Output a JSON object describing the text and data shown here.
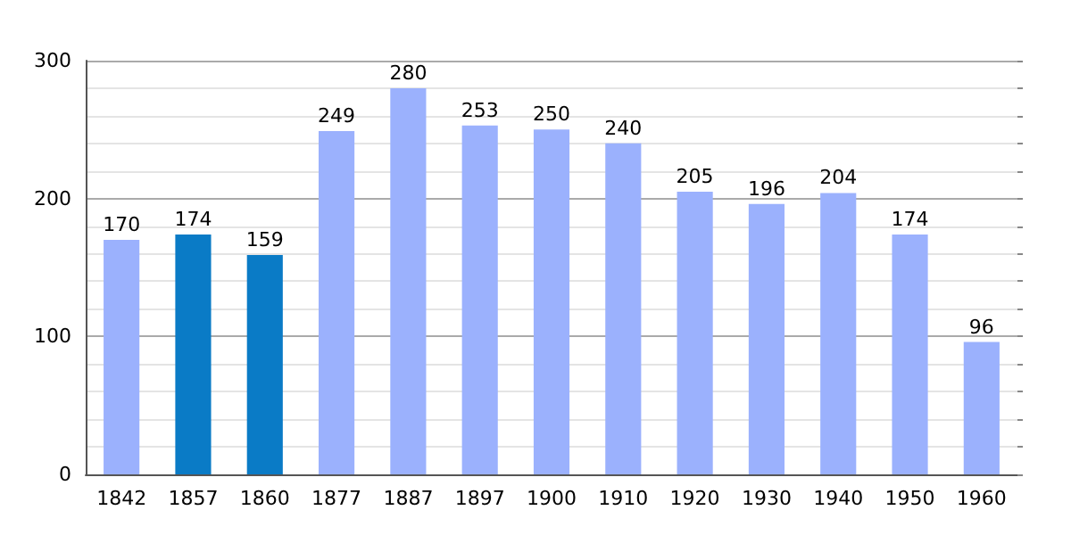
{
  "chart_data": {
    "type": "bar",
    "categories": [
      "1842",
      "1857",
      "1860",
      "1877",
      "1887",
      "1897",
      "1900",
      "1910",
      "1920",
      "1930",
      "1940",
      "1950",
      "1960"
    ],
    "values": [
      170,
      174,
      159,
      249,
      280,
      253,
      250,
      240,
      205,
      196,
      204,
      174,
      96
    ],
    "colors": [
      "#9bb1fd",
      "#0a7bc6",
      "#0a7bc6",
      "#9bb1fd",
      "#9bb1fd",
      "#9bb1fd",
      "#9bb1fd",
      "#9bb1fd",
      "#9bb1fd",
      "#9bb1fd",
      "#9bb1fd",
      "#9bb1fd",
      "#9bb1fd"
    ],
    "ylim": [
      0,
      300
    ],
    "yticks": [
      0,
      {
        "value": 20,
        "label": null
      },
      {
        "value": 40,
        "label": null
      },
      {
        "value": 60,
        "label": null
      },
      {
        "value": 80,
        "label": null
      },
      100,
      {
        "value": 120,
        "label": null
      },
      {
        "value": 140,
        "label": null
      },
      {
        "value": 160,
        "label": null
      },
      {
        "value": 180,
        "label": null
      },
      200,
      {
        "value": 220,
        "label": null
      },
      {
        "value": 240,
        "label": null
      },
      {
        "value": 260,
        "label": null
      },
      {
        "value": 280,
        "label": null
      },
      300
    ],
    "grid": "y",
    "data_labels": true
  }
}
